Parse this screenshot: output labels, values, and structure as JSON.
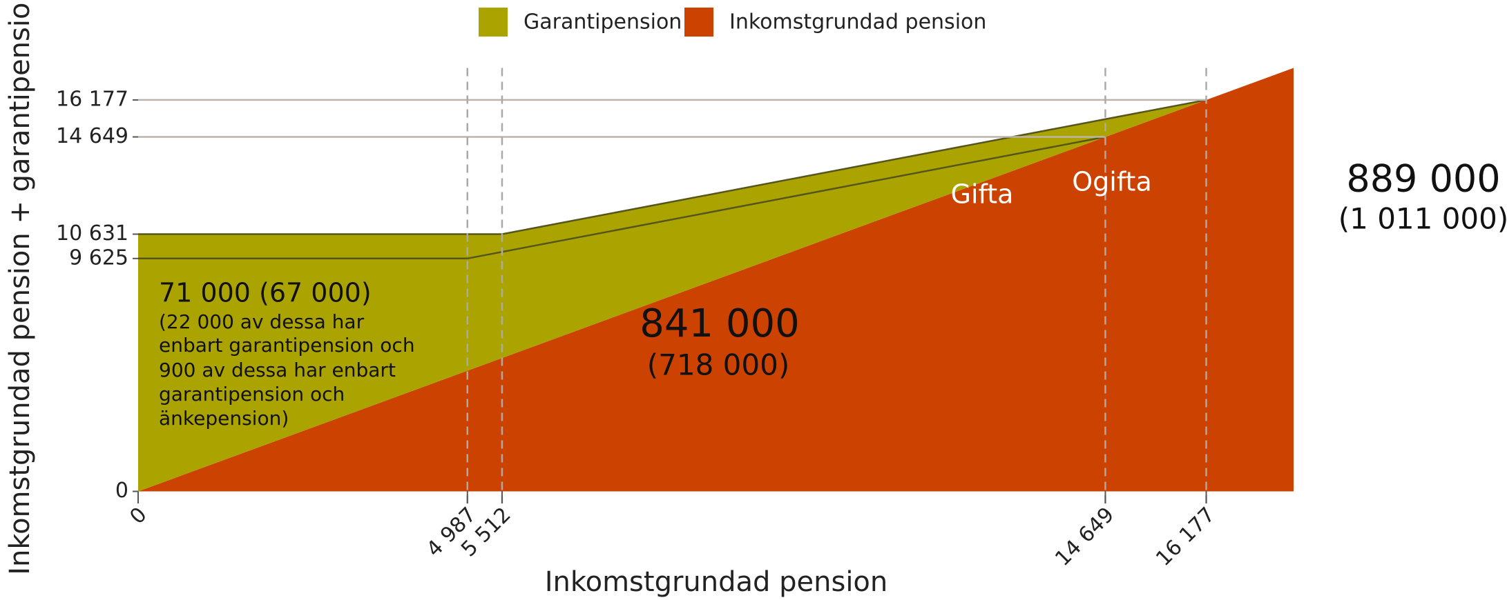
{
  "chart_data": {
    "type": "area",
    "xlabel": "Inkomstgrundad pension",
    "ylabel": "Inkomstgrundad pension + garantipension",
    "series": [
      {
        "name": "Garantipension",
        "color": "#aba400",
        "x": [
          0,
          5512,
          16177
        ],
        "values": [
          10631,
          10631,
          16177
        ]
      },
      {
        "name": "Inkomstgrundad pension",
        "color": "#cc4200",
        "x": [
          0,
          17500
        ],
        "values": [
          0,
          17500
        ]
      }
    ],
    "lines": [
      {
        "color": "#55551c",
        "x": [
          0,
          4987,
          14649
        ],
        "values": [
          9625,
          9625,
          14649
        ]
      }
    ],
    "xlim": [
      0,
      17500
    ],
    "ylim": [
      0,
      17500
    ],
    "xticks": [
      0,
      {
        "value": 4987,
        "label": "4 987"
      },
      {
        "value": 5512,
        "label": "5 512"
      },
      {
        "value": 14649,
        "label": "14 649"
      },
      {
        "value": 16177,
        "label": "16 177"
      }
    ],
    "yticks": [
      0,
      {
        "value": 9625,
        "label": "9 625"
      },
      {
        "value": 10631,
        "label": "10 631"
      },
      {
        "value": 14649,
        "label": "14 649"
      },
      {
        "value": 16177,
        "label": "16 177"
      }
    ],
    "hlines": [
      14649,
      16177
    ],
    "vlines": [
      4987,
      5512,
      14649,
      16177
    ],
    "legend": "top",
    "annotations": [
      "71 000 (67 000)",
      "(22 000 av dessa har",
      "enbart garantipension och",
      "900 av dessa har enbart",
      "garantipension och",
      "änkepension)",
      "841 000",
      "(718 000)",
      "Gifta",
      "Ogifta",
      "889 000",
      "(1 011 000)"
    ]
  }
}
